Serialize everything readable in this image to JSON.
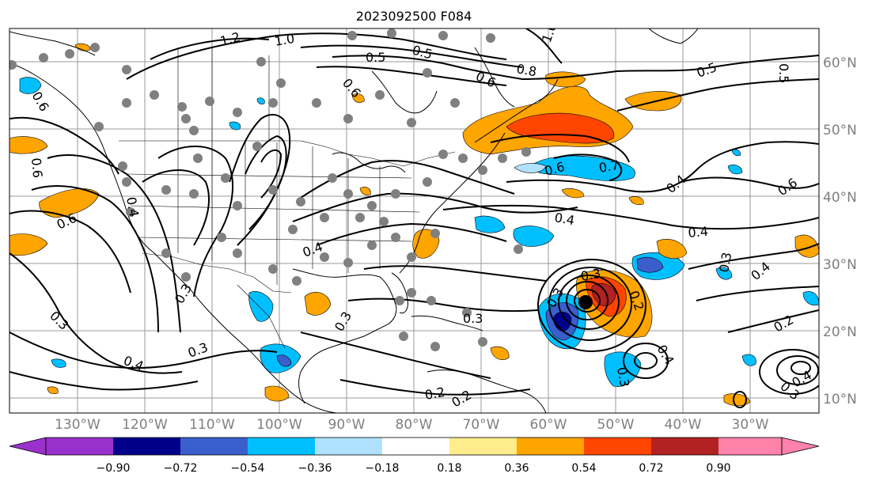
{
  "title": "2023092500 F084",
  "map": {
    "lat_labels": [
      "10°N",
      "20°N",
      "30°N",
      "40°N",
      "50°N",
      "60°N"
    ],
    "lon_labels": [
      "130°W",
      "120°W",
      "110°W",
      "100°W",
      "90°W",
      "80°W",
      "70°W",
      "60°W",
      "50°W",
      "40°W",
      "30°W"
    ],
    "contour_labels": [
      "1.2",
      "1.0",
      "0.5",
      "0.5",
      "0.8",
      "0.6",
      "1.0",
      "0.5",
      "0.4",
      "0.6",
      "0.7",
      "0.6",
      "0.4",
      "0.4",
      "0.5",
      "0.4",
      "0.6",
      "0.3",
      "0.3",
      "0.3",
      "0.4",
      "0.3",
      "0.3",
      "0.2",
      "0.2",
      "0.3",
      "0.4",
      "0.3",
      "0.3",
      "0.4",
      "0.2",
      "0.3",
      "0.4",
      "0.3",
      "0.2",
      "0.6",
      "0.6",
      "0.6",
      "0.4"
    ],
    "land_color": "#ffffff",
    "contour_color": "#000000",
    "marker_color": "#808080",
    "storm_center_color": "#000000"
  },
  "colorbar": {
    "ticks": [
      "−0.90",
      "−0.72",
      "−0.54",
      "−0.36",
      "−0.18",
      "0.18",
      "0.36",
      "0.54",
      "0.72",
      "0.90"
    ],
    "colors": [
      "#9932cc",
      "#00008b",
      "#3a5fcd",
      "#00bfff",
      "#b0e2ff",
      "#ffffff",
      "#ffec8b",
      "#ffa500",
      "#ff4500",
      "#b22222",
      "#ff82ab"
    ]
  }
}
